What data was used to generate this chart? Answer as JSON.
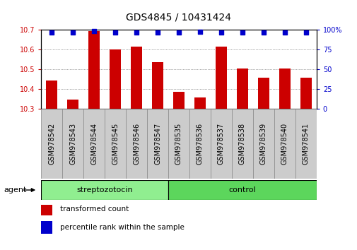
{
  "title": "GDS4845 / 10431424",
  "samples": [
    "GSM978542",
    "GSM978543",
    "GSM978544",
    "GSM978545",
    "GSM978546",
    "GSM978547",
    "GSM978535",
    "GSM978536",
    "GSM978537",
    "GSM978538",
    "GSM978539",
    "GSM978540",
    "GSM978541"
  ],
  "red_values": [
    10.445,
    10.348,
    10.695,
    10.6,
    10.615,
    10.535,
    10.385,
    10.357,
    10.615,
    10.505,
    10.457,
    10.505,
    10.457
  ],
  "blue_values": [
    97,
    97,
    99,
    97,
    97,
    97,
    97,
    98,
    97,
    97,
    97,
    97,
    97
  ],
  "ylim_left": [
    10.3,
    10.7
  ],
  "ylim_right": [
    0,
    100
  ],
  "yticks_left": [
    10.3,
    10.4,
    10.5,
    10.6,
    10.7
  ],
  "yticks_right": [
    0,
    25,
    50,
    75,
    100
  ],
  "ytick_labels_right": [
    "0",
    "25",
    "50",
    "75",
    "100%"
  ],
  "groups": [
    {
      "label": "streptozotocin",
      "start": 0,
      "end": 6,
      "color": "#90EE90"
    },
    {
      "label": "control",
      "start": 6,
      "end": 13,
      "color": "#5CD65C"
    }
  ],
  "bar_color": "#CC0000",
  "dot_color": "#0000CC",
  "bar_bottom": 10.3,
  "agent_label": "agent",
  "legend_items": [
    {
      "color": "#CC0000",
      "label": "transformed count"
    },
    {
      "color": "#0000CC",
      "label": "percentile rank within the sample"
    }
  ],
  "grid_color": "#555555",
  "bg_color": "#FFFFFF",
  "title_fontsize": 10,
  "tick_fontsize": 7,
  "label_fontsize": 8,
  "tickbox_color": "#CCCCCC",
  "tickbox_edge_color": "#888888"
}
